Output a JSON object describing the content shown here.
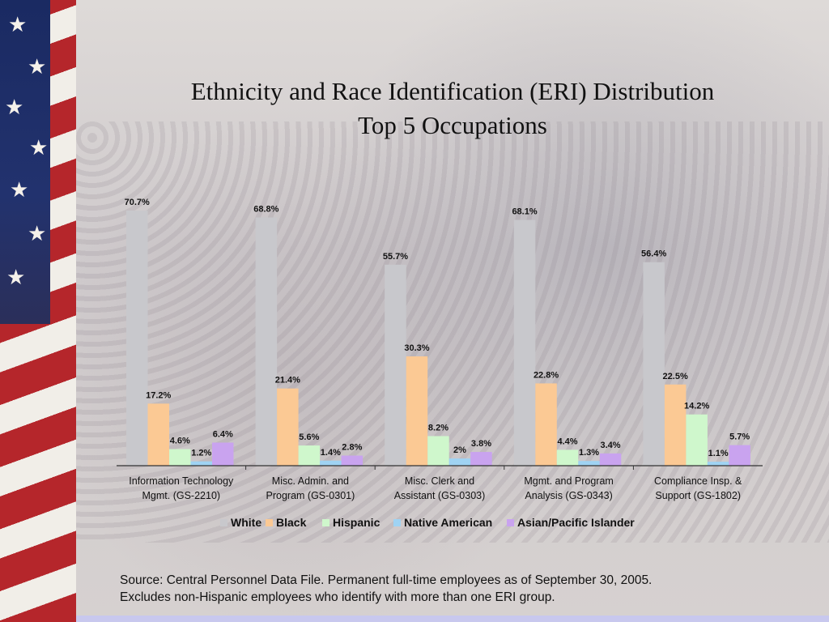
{
  "title": {
    "line1": "Ethnicity and Race Identification (ERI) Distribution",
    "line2": "Top 5 Occupations"
  },
  "chart_data": {
    "type": "bar",
    "categories": [
      [
        "Information Technology",
        "Mgmt. (GS-2210)"
      ],
      [
        "Misc. Admin. and",
        "Program (GS-0301)"
      ],
      [
        "Misc. Clerk and",
        "Assistant (GS-0303)"
      ],
      [
        "Mgmt. and Program",
        "Analysis (GS-0343)"
      ],
      [
        "Compliance Insp. &",
        "Support (GS-1802)"
      ]
    ],
    "series": [
      {
        "name": "White",
        "color": "#c8c8cc",
        "values": [
          70.7,
          68.8,
          55.7,
          68.1,
          56.4
        ]
      },
      {
        "name": "Black",
        "color": "#fbc994",
        "values": [
          17.2,
          21.4,
          30.3,
          22.8,
          22.5
        ]
      },
      {
        "name": "Hispanic",
        "color": "#cff7cc",
        "values": [
          4.6,
          5.6,
          8.2,
          4.4,
          14.2
        ]
      },
      {
        "name": "Native American",
        "color": "#9fd3f3",
        "values": [
          1.2,
          1.4,
          2.0,
          1.3,
          1.1
        ]
      },
      {
        "name": "Asian/Pacific Islander",
        "color": "#c9a3ef",
        "values": [
          6.4,
          2.8,
          3.8,
          3.4,
          5.7
        ]
      }
    ],
    "value_suffix": "%",
    "ylim": [
      0,
      75
    ],
    "legend_position": "bottom",
    "grid": false
  },
  "source": {
    "line1": "Source:  Central Personnel Data File.  Permanent full-time employees as of September 30, 2005.",
    "line2": "Excludes non-Hispanic employees  who identify with more than one ERI group."
  }
}
